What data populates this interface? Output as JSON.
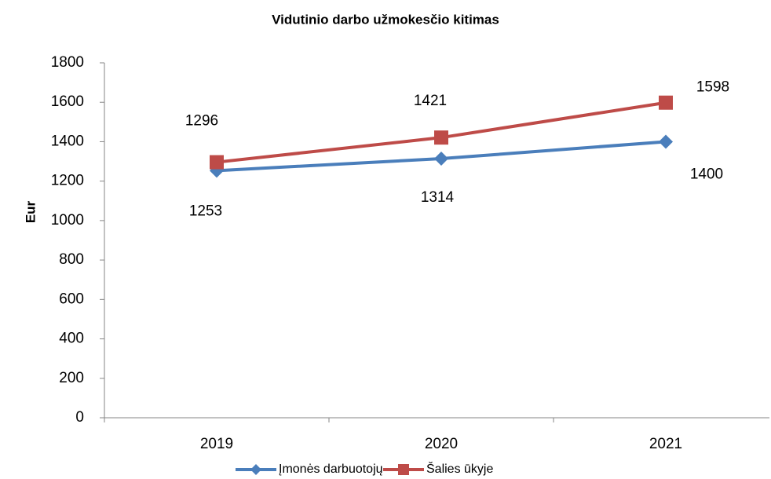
{
  "chart_data": {
    "type": "line",
    "title": "Vidutinio darbo užmokesčio kitimas",
    "y_label": "Eur",
    "categories": [
      "2019",
      "2020",
      "2021"
    ],
    "series": [
      {
        "name": "Įmonės darbuotojų",
        "color": "#4a7ebb",
        "marker": "diamond",
        "values": [
          1253,
          1314,
          1400
        ]
      },
      {
        "name": "Šalies ūkyje",
        "color": "#be4b48",
        "marker": "square",
        "values": [
          1296,
          1421,
          1598
        ]
      }
    ],
    "ylim": [
      0,
      1800
    ],
    "yticks": [
      0,
      200,
      400,
      600,
      800,
      1000,
      1200,
      1400,
      1600,
      1800
    ],
    "legend": "bottom",
    "grid": false
  }
}
